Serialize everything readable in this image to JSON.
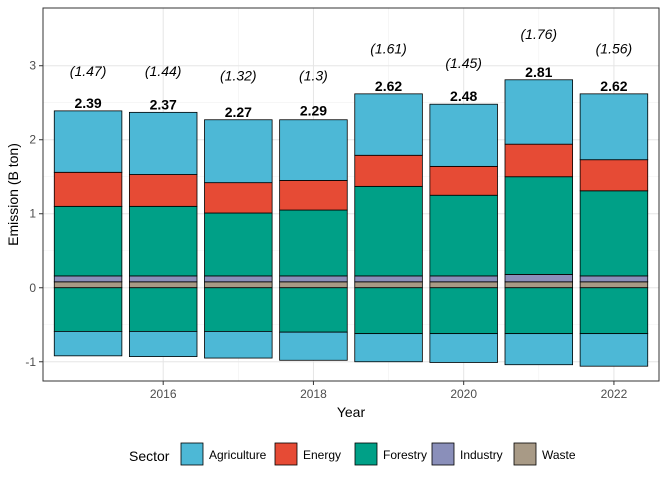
{
  "chart_data": {
    "type": "bar",
    "stacked": true,
    "xlabel": "Year",
    "ylabel": "Emission (B ton)",
    "x": [
      2015,
      2016,
      2017,
      2018,
      2019,
      2020,
      2021,
      2022
    ],
    "xticks": [
      2016,
      2018,
      2020,
      2022
    ],
    "xlim": [
      2014.4,
      2022.6
    ],
    "yticks": [
      -1,
      0,
      1,
      2,
      3
    ],
    "ylim": [
      -1.26,
      3.78
    ],
    "grid": true,
    "legend": {
      "title": "Sector",
      "position": "bottom"
    },
    "series": [
      {
        "name": "Waste",
        "color": "#a89a86",
        "values": [
          0.08,
          0.08,
          0.08,
          0.08,
          0.08,
          0.08,
          0.08,
          0.08
        ]
      },
      {
        "name": "Industry",
        "color": "#8a8fba",
        "values": [
          0.08,
          0.08,
          0.08,
          0.08,
          0.08,
          0.08,
          0.1,
          0.08
        ]
      },
      {
        "name": "Forestry",
        "color": "#00a087",
        "values": [
          0.94,
          0.94,
          0.85,
          0.89,
          1.21,
          1.09,
          1.32,
          1.15
        ]
      },
      {
        "name": "Energy",
        "color": "#e64b35",
        "values": [
          0.46,
          0.43,
          0.41,
          0.4,
          0.42,
          0.39,
          0.44,
          0.42
        ]
      },
      {
        "name": "Agriculture",
        "color": "#4db8d6",
        "values": [
          0.83,
          0.84,
          0.85,
          0.82,
          0.83,
          0.84,
          0.87,
          0.89
        ]
      }
    ],
    "negative_series": [
      {
        "name": "Forestry",
        "color": "#00a087",
        "values": [
          -0.59,
          -0.59,
          -0.59,
          -0.6,
          -0.62,
          -0.62,
          -0.62,
          -0.62
        ]
      },
      {
        "name": "Agriculture",
        "color": "#4db8d6",
        "values": [
          -0.33,
          -0.34,
          -0.36,
          -0.38,
          -0.38,
          -0.39,
          -0.42,
          -0.44
        ]
      }
    ],
    "total_labels": [
      "2.39",
      "2.37",
      "2.27",
      "2.29",
      "2.62",
      "2.48",
      "2.81",
      "2.62"
    ],
    "net_labels": [
      "(1.47)",
      "(1.44)",
      "(1.32)",
      "(1.3)",
      "(1.61)",
      "(1.45)",
      "(1.76)",
      "(1.56)"
    ],
    "net_label_y": [
      2.93,
      2.93,
      2.87,
      2.87,
      3.23,
      3.04,
      3.43,
      3.23
    ],
    "legend_order": [
      "Agriculture",
      "Energy",
      "Forestry",
      "Industry",
      "Waste"
    ]
  }
}
